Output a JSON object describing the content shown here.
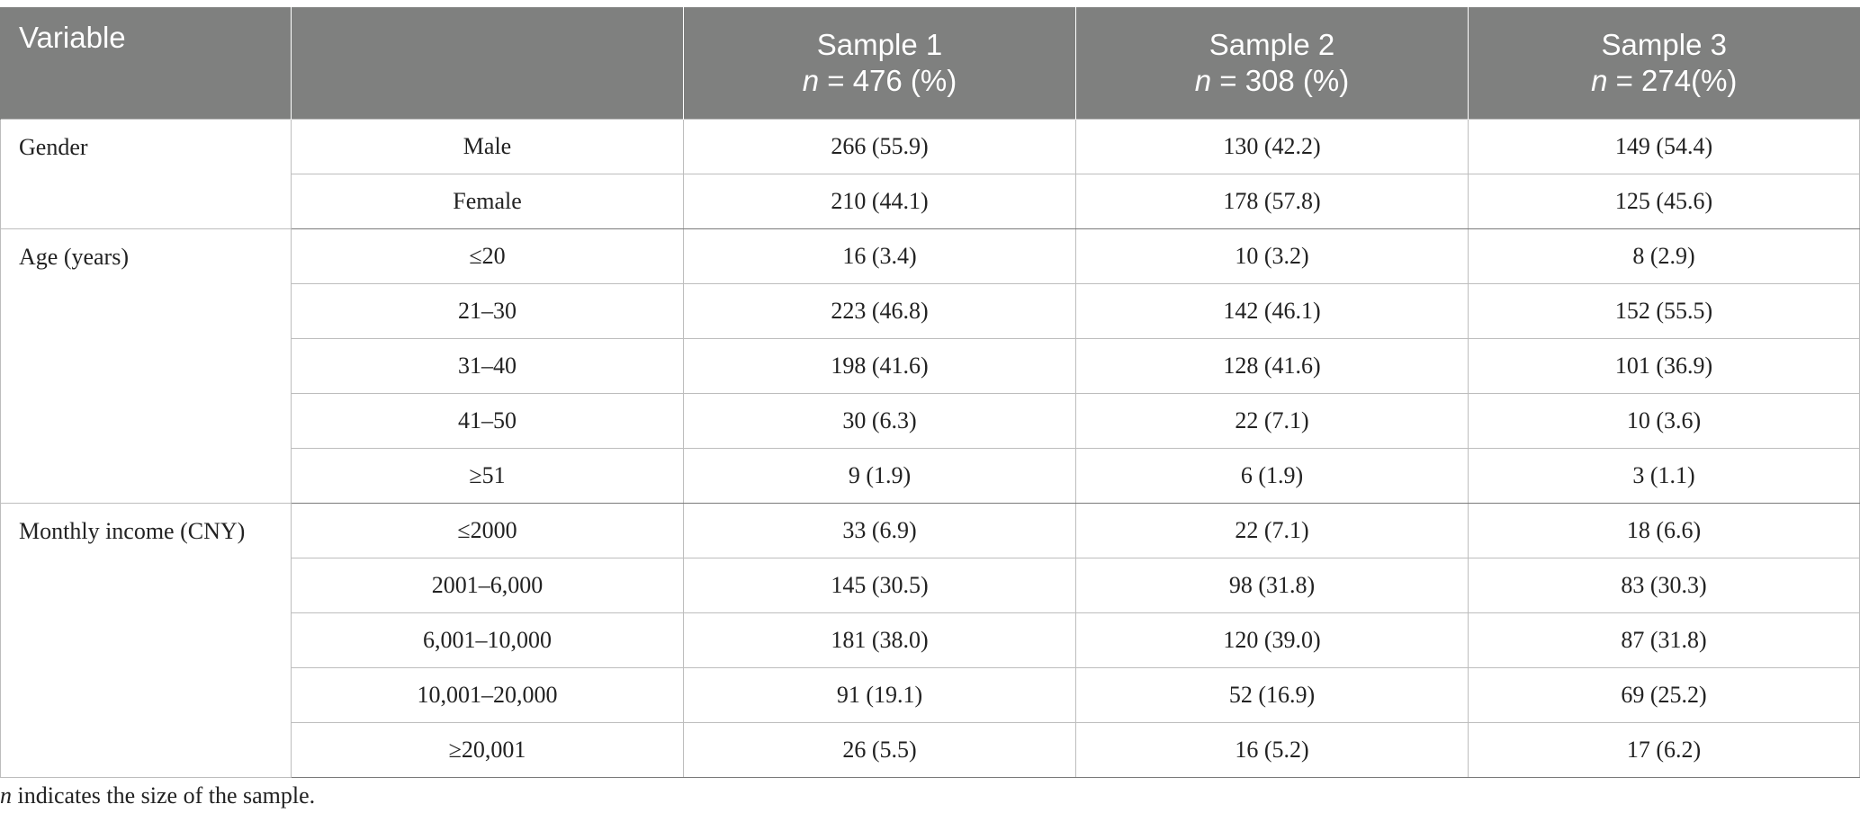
{
  "table": {
    "headers": {
      "variable": "Variable",
      "sample1_name": "Sample 1",
      "sample1_n_label": "n",
      "sample1_n_value": " = 476 (%)",
      "sample2_name": "Sample 2",
      "sample2_n_label": "n",
      "sample2_n_value": " = 308 (%)",
      "sample3_name": "Sample 3",
      "sample3_n_label": "n",
      "sample3_n_value": " = 274(%)"
    },
    "groups": [
      {
        "variable": "Gender",
        "rows": [
          {
            "category": "Male",
            "s1": "266 (55.9)",
            "s2": "130 (42.2)",
            "s3": "149 (54.4)"
          },
          {
            "category": "Female",
            "s1": "210 (44.1)",
            "s2": "178 (57.8)",
            "s3": "125 (45.6)"
          }
        ]
      },
      {
        "variable": "Age (years)",
        "rows": [
          {
            "category": "≤20",
            "s1": "16 (3.4)",
            "s2": "10 (3.2)",
            "s3": "8 (2.9)"
          },
          {
            "category": "21–30",
            "s1": "223 (46.8)",
            "s2": "142 (46.1)",
            "s3": "152 (55.5)"
          },
          {
            "category": "31–40",
            "s1": "198 (41.6)",
            "s2": "128 (41.6)",
            "s3": "101 (36.9)"
          },
          {
            "category": "41–50",
            "s1": "30 (6.3)",
            "s2": "22 (7.1)",
            "s3": "10 (3.6)"
          },
          {
            "category": "≥51",
            "s1": "9 (1.9)",
            "s2": "6 (1.9)",
            "s3": "3 (1.1)"
          }
        ]
      },
      {
        "variable": "Monthly income (CNY)",
        "rows": [
          {
            "category": "≤2000",
            "s1": "33 (6.9)",
            "s2": "22 (7.1)",
            "s3": "18 (6.6)"
          },
          {
            "category": "2001–6,000",
            "s1": "145 (30.5)",
            "s2": "98 (31.8)",
            "s3": "83 (30.3)"
          },
          {
            "category": "6,001–10,000",
            "s1": "181 (38.0)",
            "s2": "120 (39.0)",
            "s3": "87 (31.8)"
          },
          {
            "category": "10,001–20,000",
            "s1": "91 (19.1)",
            "s2": "52 (16.9)",
            "s3": "69 (25.2)"
          },
          {
            "category": "≥20,001",
            "s1": "26 (5.5)",
            "s2": "16 (5.2)",
            "s3": "17 (6.2)"
          }
        ]
      }
    ]
  },
  "footnote": {
    "italic": "n",
    "text": " indicates the size of the sample."
  }
}
